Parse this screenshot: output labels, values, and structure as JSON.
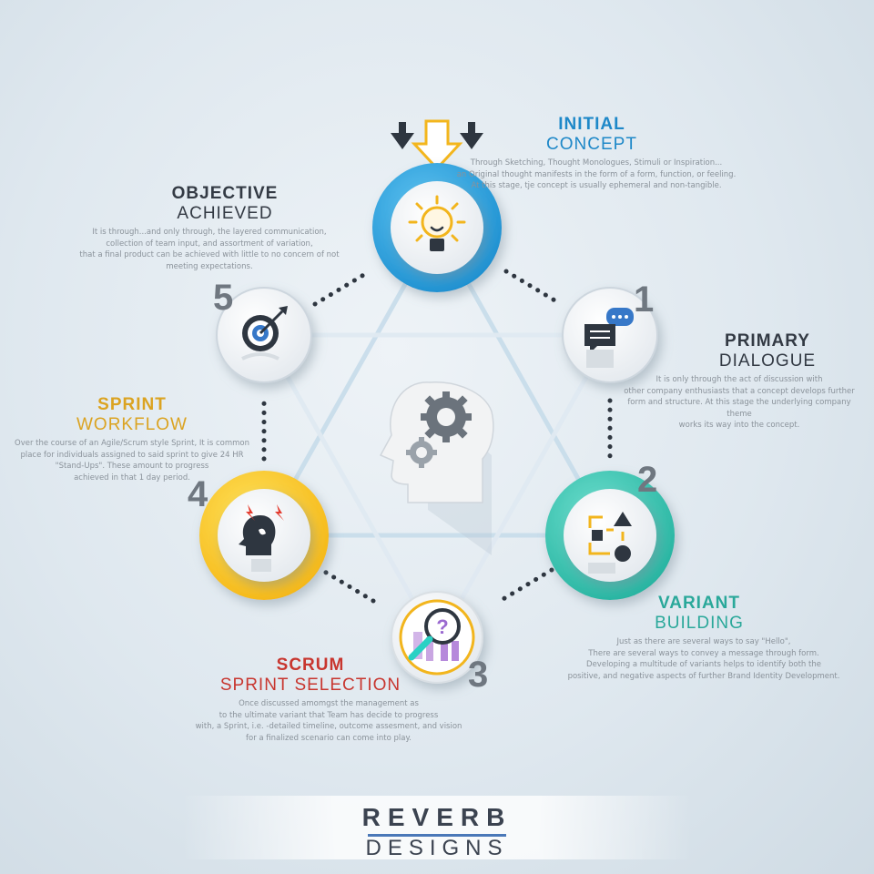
{
  "steps": {
    "initial": {
      "title": "INITIAL",
      "subtitle": "CONCEPT",
      "color": "#1e88c8",
      "desc": [
        "Through Sketching, Thought Monologues, Stimuli or Inspiration...",
        "an Original thought manifests in the form of a form, function, or feeling.",
        "At this stage, tje concept is usually ephemeral and non-tangible."
      ],
      "icon": "lightbulb-icon"
    },
    "primary": {
      "number": "1",
      "title": "PRIMARY",
      "subtitle": "DIALOGUE",
      "color": "#333a44",
      "desc": [
        "It is only through the act of discussion with",
        "other company enthusiasts that a concept develops further",
        "form and structure. At this stage the underlying company theme",
        "works its way into the concept."
      ],
      "icon": "chat-bubbles-icon"
    },
    "variant": {
      "number": "2",
      "title": "VARIANT",
      "subtitle": "BUILDING",
      "color": "#2aa89a",
      "desc": [
        "Just as there are several ways to say \"Hello\",",
        "There are several ways to convey a message through form.",
        "Developing a multitude of variants helps to identify both the",
        "positive, and negative aspects of further Brand Identity Development."
      ],
      "icon": "flowchart-shapes-icon"
    },
    "scrum": {
      "number": "3",
      "title": "SCRUM",
      "subtitle": "SPRINT SELECTION",
      "color": "#c8362f",
      "desc": [
        "Once discussed amomgst the management as",
        "to the ultimate variant that Team has decide to progress",
        "with, a Sprint, i.e. -detailed timeline, outcome assesment, and vision",
        "for a finalized scenario can come into play."
      ],
      "icon": "magnifier-people-icon"
    },
    "sprint": {
      "number": "4",
      "title": "SPRINT",
      "subtitle": "WORKFLOW",
      "color": "#dba321",
      "desc": [
        "Over the course of an Agile/Scrum style Sprint, It is common",
        "place for individuals assigned to said sprint to give 24 HR",
        "\"Stand-Ups\". These amount to progress",
        "achieved in that 1 day period."
      ],
      "icon": "stressed-head-icon"
    },
    "objective": {
      "number": "5",
      "title": "OBJECTIVE",
      "subtitle": "ACHIEVED",
      "color": "#333a44",
      "desc": [
        "It is through...and only through, the layered communication,",
        "collection of team input, and assortment of variation,",
        "that a final product can be achieved with little to no concern of not",
        "meeting expectations."
      ],
      "icon": "target-arrow-icon"
    }
  },
  "center_icon": "head-gears-icon",
  "brand": {
    "top": "REVERB",
    "bottom": "DESIGNS"
  }
}
